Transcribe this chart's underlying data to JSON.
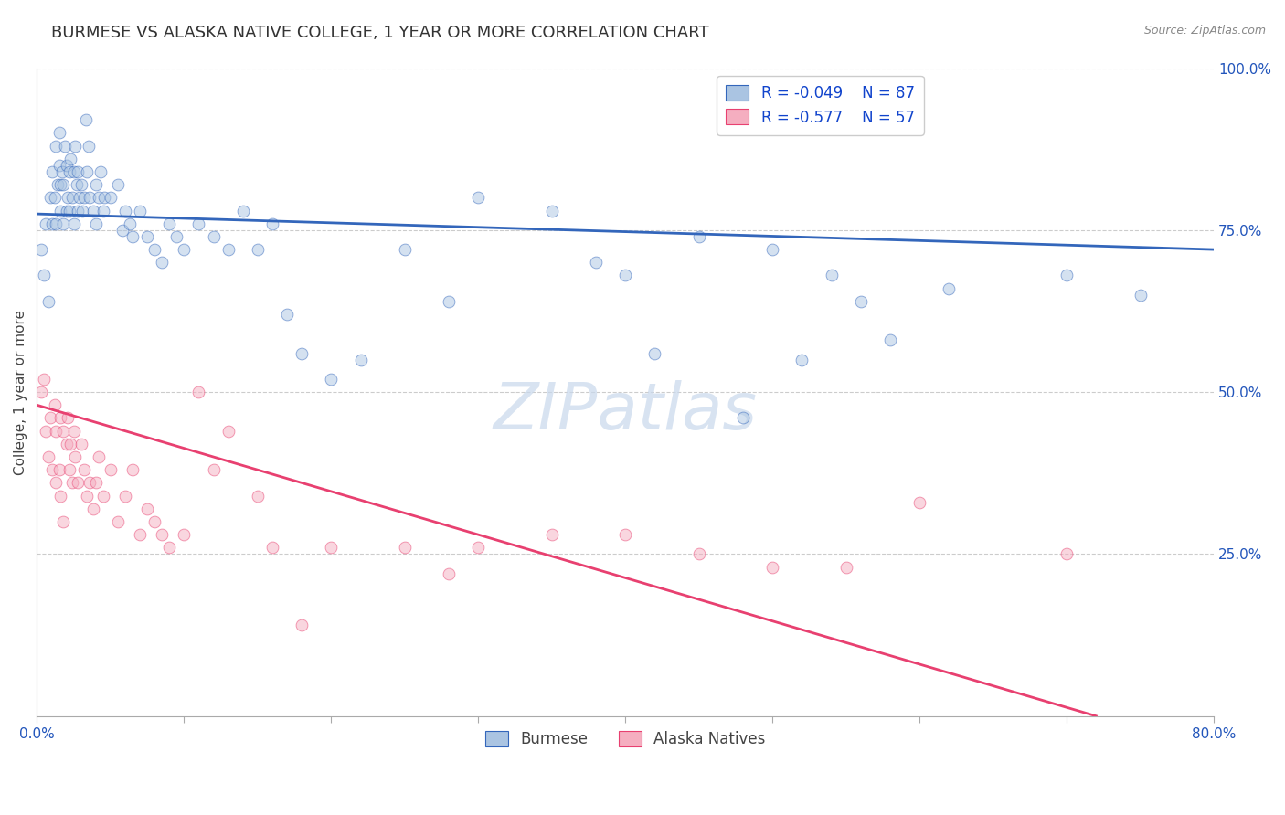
{
  "title": "BURMESE VS ALASKA NATIVE COLLEGE, 1 YEAR OR MORE CORRELATION CHART",
  "source": "Source: ZipAtlas.com",
  "ylabel_label": "College, 1 year or more",
  "xmin": 0.0,
  "xmax": 0.8,
  "ymin": 0.0,
  "ymax": 1.0,
  "ytick_labels": [
    "100.0%",
    "75.0%",
    "50.0%",
    "25.0%"
  ],
  "yticks": [
    1.0,
    0.75,
    0.5,
    0.25
  ],
  "blue_R": "-0.049",
  "blue_N": "87",
  "pink_R": "-0.577",
  "pink_N": "57",
  "blue_color": "#aac4e2",
  "pink_color": "#f5aec0",
  "blue_line_color": "#3366bb",
  "pink_line_color": "#e84070",
  "watermark_text": "ZIPatlas",
  "blue_scatter_x": [
    0.003,
    0.005,
    0.006,
    0.008,
    0.009,
    0.01,
    0.01,
    0.012,
    0.013,
    0.013,
    0.014,
    0.015,
    0.015,
    0.016,
    0.016,
    0.017,
    0.018,
    0.018,
    0.019,
    0.02,
    0.02,
    0.021,
    0.022,
    0.022,
    0.023,
    0.024,
    0.025,
    0.025,
    0.026,
    0.027,
    0.028,
    0.028,
    0.029,
    0.03,
    0.031,
    0.032,
    0.033,
    0.034,
    0.035,
    0.036,
    0.038,
    0.04,
    0.04,
    0.042,
    0.043,
    0.045,
    0.046,
    0.05,
    0.055,
    0.058,
    0.06,
    0.063,
    0.065,
    0.07,
    0.075,
    0.08,
    0.085,
    0.09,
    0.095,
    0.1,
    0.11,
    0.12,
    0.13,
    0.14,
    0.15,
    0.16,
    0.17,
    0.18,
    0.2,
    0.22,
    0.25,
    0.28,
    0.3,
    0.35,
    0.38,
    0.4,
    0.42,
    0.45,
    0.48,
    0.5,
    0.52,
    0.54,
    0.56,
    0.58,
    0.62,
    0.7,
    0.75
  ],
  "blue_scatter_y": [
    0.72,
    0.68,
    0.76,
    0.64,
    0.8,
    0.76,
    0.84,
    0.8,
    0.76,
    0.88,
    0.82,
    0.85,
    0.9,
    0.82,
    0.78,
    0.84,
    0.82,
    0.76,
    0.88,
    0.85,
    0.78,
    0.8,
    0.84,
    0.78,
    0.86,
    0.8,
    0.84,
    0.76,
    0.88,
    0.82,
    0.84,
    0.78,
    0.8,
    0.82,
    0.78,
    0.8,
    0.92,
    0.84,
    0.88,
    0.8,
    0.78,
    0.82,
    0.76,
    0.8,
    0.84,
    0.78,
    0.8,
    0.8,
    0.82,
    0.75,
    0.78,
    0.76,
    0.74,
    0.78,
    0.74,
    0.72,
    0.7,
    0.76,
    0.74,
    0.72,
    0.76,
    0.74,
    0.72,
    0.78,
    0.72,
    0.76,
    0.62,
    0.56,
    0.52,
    0.55,
    0.72,
    0.64,
    0.8,
    0.78,
    0.7,
    0.68,
    0.56,
    0.74,
    0.46,
    0.72,
    0.55,
    0.68,
    0.64,
    0.58,
    0.66,
    0.68,
    0.65
  ],
  "pink_scatter_x": [
    0.003,
    0.005,
    0.006,
    0.008,
    0.009,
    0.01,
    0.012,
    0.013,
    0.013,
    0.015,
    0.016,
    0.016,
    0.018,
    0.018,
    0.02,
    0.021,
    0.022,
    0.023,
    0.024,
    0.025,
    0.026,
    0.028,
    0.03,
    0.032,
    0.034,
    0.036,
    0.038,
    0.04,
    0.042,
    0.045,
    0.05,
    0.055,
    0.06,
    0.065,
    0.07,
    0.075,
    0.08,
    0.085,
    0.09,
    0.1,
    0.11,
    0.12,
    0.13,
    0.15,
    0.16,
    0.18,
    0.2,
    0.25,
    0.28,
    0.3,
    0.35,
    0.4,
    0.45,
    0.5,
    0.55,
    0.6,
    0.7
  ],
  "pink_scatter_y": [
    0.5,
    0.52,
    0.44,
    0.4,
    0.46,
    0.38,
    0.48,
    0.44,
    0.36,
    0.38,
    0.46,
    0.34,
    0.44,
    0.3,
    0.42,
    0.46,
    0.38,
    0.42,
    0.36,
    0.44,
    0.4,
    0.36,
    0.42,
    0.38,
    0.34,
    0.36,
    0.32,
    0.36,
    0.4,
    0.34,
    0.38,
    0.3,
    0.34,
    0.38,
    0.28,
    0.32,
    0.3,
    0.28,
    0.26,
    0.28,
    0.5,
    0.38,
    0.44,
    0.34,
    0.26,
    0.14,
    0.26,
    0.26,
    0.22,
    0.26,
    0.28,
    0.28,
    0.25,
    0.23,
    0.23,
    0.33,
    0.25
  ],
  "blue_line_x": [
    0.0,
    0.8
  ],
  "blue_line_y": [
    0.775,
    0.72
  ],
  "pink_line_x": [
    0.0,
    0.72
  ],
  "pink_line_y": [
    0.48,
    0.0
  ],
  "background_color": "#ffffff",
  "grid_color": "#cccccc",
  "title_fontsize": 13,
  "label_fontsize": 11,
  "tick_fontsize": 11,
  "legend_fontsize": 12,
  "watermark_fontsize": 52,
  "scatter_size": 85,
  "scatter_alpha": 0.5,
  "line_width": 2.0
}
